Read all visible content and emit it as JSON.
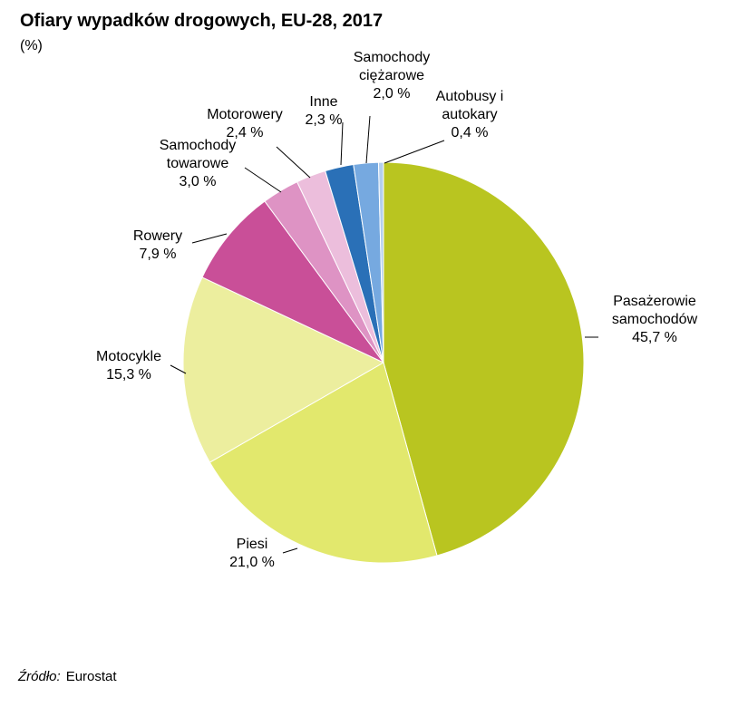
{
  "title": "Ofiary wypadków drogowych, EU-28, 2017",
  "subtitle": "(%)",
  "source": {
    "label": "Źródło:",
    "value": "Eurostat"
  },
  "chart_data": {
    "type": "pie",
    "title": "Ofiary wypadków drogowych, EU-28, 2017",
    "unit": "%",
    "start": "12 o'clock, clockwise",
    "slices": [
      {
        "label": [
          "Pasażerowie",
          "samochodów"
        ],
        "value_text": "45,7 %",
        "value": 45.7,
        "color": "#b9c520"
      },
      {
        "label": [
          "Piesi"
        ],
        "value_text": "21,0 %",
        "value": 21.0,
        "color": "#e2e86d"
      },
      {
        "label": [
          "Motocykle"
        ],
        "value_text": "15,3 %",
        "value": 15.3,
        "color": "#ecee9e"
      },
      {
        "label": [
          "Rowery"
        ],
        "value_text": "7,9 %",
        "value": 7.9,
        "color": "#c94f98"
      },
      {
        "label": [
          "Samochody",
          "towarowe"
        ],
        "value_text": "3,0 %",
        "value": 3.0,
        "color": "#de93c4"
      },
      {
        "label": [
          "Motorowery"
        ],
        "value_text": "2,4 %",
        "value": 2.4,
        "color": "#ecbedc"
      },
      {
        "label": [
          "Inne"
        ],
        "value_text": "2,3 %",
        "value": 2.3,
        "color": "#2a70b7"
      },
      {
        "label": [
          "Samochody",
          "ciężarowe"
        ],
        "value_text": "2,0 %",
        "value": 2.0,
        "color": "#76a9e0"
      },
      {
        "label": [
          "Autobusy i",
          "autokary"
        ],
        "value_text": "0,4 %",
        "value": 0.4,
        "color": "#b4cfee"
      }
    ]
  }
}
